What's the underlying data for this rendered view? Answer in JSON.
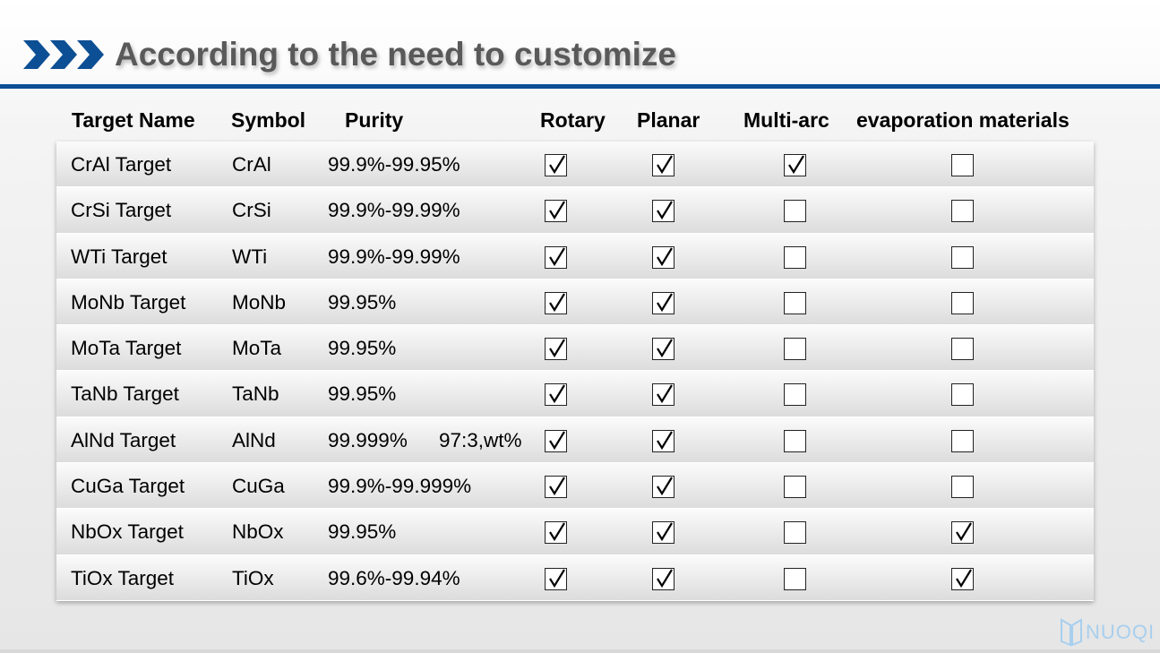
{
  "slide": {
    "title": "According to the need to customize",
    "accent_color": "#0d4f94"
  },
  "table": {
    "headers": [
      "Target Name",
      "Symbol",
      "Purity",
      "Rotary",
      "Planar",
      "Multi-arc",
      "evaporation materials"
    ],
    "rows": [
      {
        "name": "CrAl Target",
        "symbol": "CrAl",
        "purity": "99.9%-99.95%",
        "extra": "",
        "rotary": true,
        "planar": true,
        "multi_arc": true,
        "evaporation": false
      },
      {
        "name": "CrSi Target",
        "symbol": "CrSi",
        "purity": "99.9%-99.99%",
        "extra": "",
        "rotary": true,
        "planar": true,
        "multi_arc": false,
        "evaporation": false
      },
      {
        "name": "WTi Target",
        "symbol": "WTi",
        "purity": "99.9%-99.99%",
        "extra": "",
        "rotary": true,
        "planar": true,
        "multi_arc": false,
        "evaporation": false
      },
      {
        "name": "MoNb Target",
        "symbol": "MoNb",
        "purity": "99.95%",
        "extra": "",
        "rotary": true,
        "planar": true,
        "multi_arc": false,
        "evaporation": false
      },
      {
        "name": "MoTa Target",
        "symbol": "MoTa",
        "purity": "99.95%",
        "extra": "",
        "rotary": true,
        "planar": true,
        "multi_arc": false,
        "evaporation": false
      },
      {
        "name": "TaNb Target",
        "symbol": "TaNb",
        "purity": "99.95%",
        "extra": "",
        "rotary": true,
        "planar": true,
        "multi_arc": false,
        "evaporation": false
      },
      {
        "name": "AlNd Target",
        "symbol": "AlNd",
        "purity": "99.999%",
        "extra": "97:3,wt%",
        "rotary": true,
        "planar": true,
        "multi_arc": false,
        "evaporation": false
      },
      {
        "name": "CuGa Target",
        "symbol": "CuGa",
        "purity": "99.9%-99.999%",
        "extra": "",
        "rotary": true,
        "planar": true,
        "multi_arc": false,
        "evaporation": false
      },
      {
        "name": "NbOx Target",
        "symbol": "NbOx",
        "purity": "99.95%",
        "extra": "",
        "rotary": true,
        "planar": true,
        "multi_arc": false,
        "evaporation": true
      },
      {
        "name": "TiOx Target",
        "symbol": "TiOx",
        "purity": "99.6%-99.94%",
        "extra": "",
        "rotary": true,
        "planar": true,
        "multi_arc": false,
        "evaporation": true
      }
    ]
  },
  "logo": {
    "text": "NUOQI"
  }
}
